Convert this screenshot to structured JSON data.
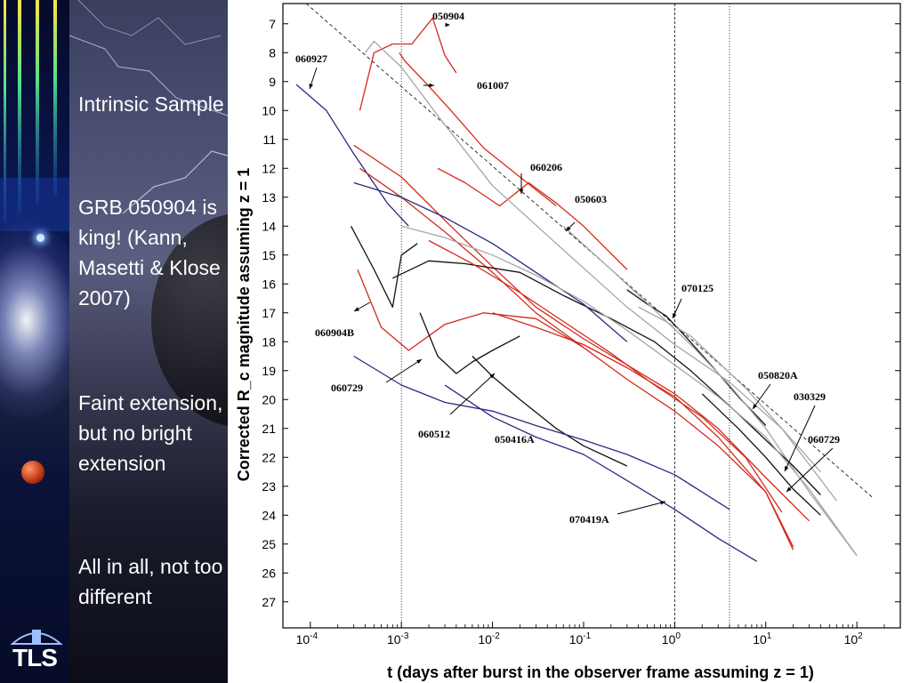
{
  "sidebar": {
    "logo_text": "TLS",
    "logo_icon": "observatory-dome-icon"
  },
  "bullets": [
    "Intrinsic Sample",
    "GRB 050904 is king! (Kann, Masetti & Klose 2007)",
    "Faint extension, but no bright extension",
    "All in all, not too different"
  ],
  "chart_data": {
    "type": "line",
    "xscale": "log",
    "xlim": [
      5e-05,
      300
    ],
    "ylim": [
      27.9,
      6.3
    ],
    "y_inverted": true,
    "xlabel": "t (days after burst in the observer frame assuming z = 1)",
    "ylabel": "Corrected R_c magnitude assuming z = 1",
    "xticks": [
      {
        "sup": "-4"
      },
      {
        "sup": "-3"
      },
      {
        "sup": "-2"
      },
      {
        "sup": "-1"
      },
      {
        "sup": "0"
      },
      {
        "sup": "1"
      },
      {
        "sup": "2"
      }
    ],
    "yticks": [
      7,
      8,
      9,
      10,
      11,
      12,
      13,
      14,
      15,
      16,
      17,
      18,
      19,
      20,
      21,
      22,
      23,
      24,
      25,
      26,
      27
    ],
    "vlines": [
      0.001,
      1.0,
      4.0
    ],
    "reference_line": {
      "x": [
        9e-05,
        150
      ],
      "y": [
        6.3,
        23.4
      ]
    },
    "colors": {
      "red": "#d42a1c",
      "black": "#111111",
      "gray": "#a6a6a6",
      "blue": "#2a2a82"
    },
    "series": [
      {
        "name": "050904",
        "color": "red",
        "x": [
          0.00035,
          0.0005,
          0.0008,
          0.0013,
          0.0022,
          0.003,
          0.004
        ],
        "y": [
          10.0,
          8.0,
          7.7,
          7.7,
          6.8,
          8.1,
          8.7
        ]
      },
      {
        "name": "061007",
        "color": "red",
        "x": [
          0.00095,
          0.0011,
          0.0018,
          0.0035,
          0.008,
          0.02,
          0.05
        ],
        "y": [
          8.0,
          8.3,
          9.0,
          10.0,
          11.3,
          12.3,
          13.3
        ]
      },
      {
        "name": "060927",
        "color": "blue",
        "x": [
          7e-05,
          0.00015,
          0.0003,
          0.0007,
          0.0012
        ],
        "y": [
          9.1,
          10.0,
          11.5,
          13.2,
          14.0
        ]
      },
      {
        "name": "060206",
        "color": "red",
        "x": [
          0.0025,
          0.005,
          0.012,
          0.025,
          0.05,
          0.1,
          0.3
        ],
        "y": [
          12.0,
          12.5,
          13.3,
          12.5,
          13.2,
          14.0,
          15.5
        ]
      },
      {
        "name": "050603",
        "color": "black",
        "x": [
          0.3,
          0.5,
          0.8,
          1.3,
          2.5,
          5,
          10
        ],
        "y": [
          16.2,
          16.7,
          17.1,
          17.8,
          18.8,
          19.9,
          20.9
        ]
      },
      {
        "name": "070125",
        "color": "gray",
        "x": [
          0.4,
          0.8,
          1.5,
          3,
          6,
          15,
          40
        ],
        "y": [
          16.8,
          17.3,
          17.8,
          18.7,
          19.6,
          21.0,
          22.5
        ]
      },
      {
        "name": "060904B",
        "color": "red",
        "x": [
          0.00033,
          0.0006,
          0.0012,
          0.003,
          0.008,
          0.03,
          0.1
        ],
        "y": [
          15.5,
          17.5,
          18.3,
          17.4,
          17.0,
          17.2,
          18.2
        ]
      },
      {
        "name": "050820A",
        "color": "gray",
        "x": [
          0.0004,
          0.0005,
          0.001,
          0.003,
          0.01,
          0.05,
          0.3,
          1,
          4,
          15,
          60
        ],
        "y": [
          8.0,
          7.6,
          8.5,
          10.5,
          12.6,
          14.6,
          16.8,
          18.1,
          19.4,
          21.0,
          23.5
        ]
      },
      {
        "name": "030329",
        "color": "gray",
        "x": [
          0.06,
          0.2,
          0.6,
          1.5,
          4,
          10,
          30,
          100
        ],
        "y": [
          14.0,
          15.5,
          16.9,
          18.1,
          19.5,
          21.0,
          23.2,
          25.4
        ]
      },
      {
        "name": "060729",
        "color": "black",
        "x": [
          0.0016,
          0.0025,
          0.004,
          0.006,
          0.01,
          0.02
        ],
        "y": [
          17.0,
          18.5,
          19.1,
          18.7,
          18.3,
          17.8
        ]
      },
      {
        "name": "060729",
        "color": "black",
        "x": [
          2,
          5,
          10,
          20,
          40
        ],
        "y": [
          19.8,
          21.0,
          22.0,
          23.1,
          24.0
        ]
      },
      {
        "name": "060512",
        "color": "black",
        "x": [
          0.006,
          0.01,
          0.02,
          0.05,
          0.1,
          0.3
        ],
        "y": [
          18.5,
          19.2,
          20.0,
          21.0,
          21.6,
          22.3
        ]
      },
      {
        "name": "050416A",
        "color": "blue",
        "x": [
          0.0003,
          0.001,
          0.003,
          0.01,
          0.03,
          0.1,
          0.3,
          1,
          4
        ],
        "y": [
          18.5,
          19.5,
          20.1,
          20.4,
          20.9,
          21.4,
          21.9,
          22.6,
          23.8
        ]
      },
      {
        "name": "070419A",
        "color": "blue",
        "x": [
          0.003,
          0.01,
          0.03,
          0.1,
          0.3,
          1,
          3,
          8
        ],
        "y": [
          19.5,
          20.6,
          21.3,
          21.9,
          22.8,
          23.8,
          24.8,
          25.6
        ]
      },
      {
        "name": "",
        "color": "red",
        "x": [
          0.00035,
          0.001,
          0.003,
          0.01,
          0.03,
          0.1,
          0.3,
          1,
          3,
          10,
          20
        ],
        "y": [
          12.0,
          13.0,
          14.2,
          15.6,
          17.0,
          18.2,
          19.3,
          20.4,
          21.6,
          23.2,
          25.2
        ]
      },
      {
        "name": "",
        "color": "red",
        "x": [
          0.0003,
          0.001,
          0.003,
          0.01,
          0.03,
          0.1,
          0.3,
          1,
          3,
          10,
          30
        ],
        "y": [
          11.2,
          12.3,
          13.8,
          15.4,
          16.8,
          17.9,
          18.8,
          19.8,
          21.0,
          22.7,
          24.2
        ]
      },
      {
        "name": "",
        "color": "black",
        "x": [
          0.0008,
          0.002,
          0.005,
          0.02,
          0.06,
          0.2,
          0.6,
          1.5,
          5,
          20,
          40
        ],
        "y": [
          15.8,
          15.2,
          15.3,
          15.6,
          16.4,
          17.2,
          18.0,
          19.0,
          20.5,
          22.3,
          23.3
        ]
      },
      {
        "name": "",
        "color": "blue",
        "x": [
          0.0003,
          0.001,
          0.003,
          0.01,
          0.03,
          0.1,
          0.3
        ],
        "y": [
          12.5,
          13.0,
          13.7,
          14.6,
          15.6,
          16.7,
          18.0
        ]
      },
      {
        "name": "",
        "color": "gray",
        "x": [
          0.001,
          0.003,
          0.01,
          0.03,
          0.1,
          0.3,
          1,
          3,
          10,
          30,
          100
        ],
        "y": [
          14.0,
          14.4,
          15.0,
          15.7,
          16.6,
          17.6,
          18.8,
          19.9,
          21.3,
          23.1,
          25.4
        ]
      },
      {
        "name": "",
        "color": "red",
        "x": [
          0.01,
          0.03,
          0.1,
          0.3,
          1,
          3,
          10,
          20
        ],
        "y": [
          17.0,
          17.5,
          18.1,
          18.9,
          19.9,
          21.3,
          23.2,
          25.1
        ]
      },
      {
        "name": "",
        "color": "black",
        "x": [
          0.00028,
          0.0005,
          0.0008,
          0.001,
          0.0015
        ],
        "y": [
          14.0,
          15.5,
          16.8,
          15.0,
          14.6
        ]
      },
      {
        "name": "",
        "color": "red",
        "x": [
          0.002,
          0.006,
          0.02,
          0.06,
          0.2,
          0.6,
          2,
          6,
          15
        ],
        "y": [
          14.5,
          15.3,
          16.3,
          17.3,
          18.4,
          19.5,
          20.6,
          22.0,
          23.9
        ]
      }
    ],
    "annotations": [
      {
        "text": "050904"
      },
      {
        "text": "061007"
      },
      {
        "text": "060927"
      },
      {
        "text": "060206"
      },
      {
        "text": "050603"
      },
      {
        "text": "070125"
      },
      {
        "text": "060904B"
      },
      {
        "text": "050820A"
      },
      {
        "text": "030329"
      },
      {
        "text": "060729"
      },
      {
        "text": "060729"
      },
      {
        "text": "060512"
      },
      {
        "text": "050416A"
      },
      {
        "text": "070419A"
      }
    ]
  }
}
